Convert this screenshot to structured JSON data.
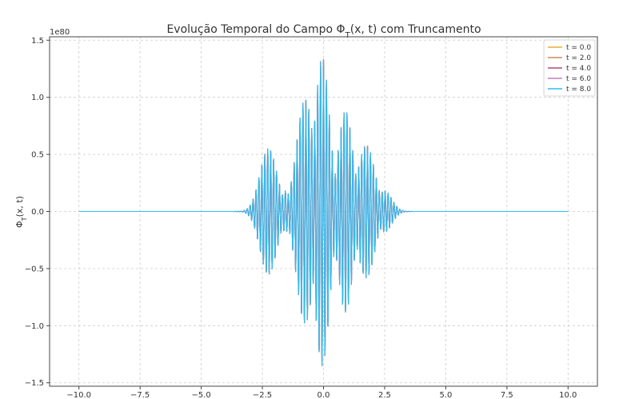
{
  "chart_data": {
    "type": "line",
    "title": "Evolução Temporal do Campo Φ_T(x, t) com Truncamento",
    "title_parts": {
      "prefix": "Evolução Temporal do Campo Φ",
      "sub": "T",
      "suffix": "(x, t) com Truncamento"
    },
    "ylabel": "Φ_T(x, t)",
    "ylabel_parts": {
      "prefix": "Φ",
      "sub": "T",
      "suffix": "(x, t)"
    },
    "xlabel": "",
    "y_offset_label": "1e80",
    "xlim": [
      -11.2,
      11.2
    ],
    "ylim": [
      -1.53,
      1.53
    ],
    "x_ticks": [
      -10.0,
      -7.5,
      -5.0,
      -2.5,
      0.0,
      2.5,
      5.0,
      7.5,
      10.0
    ],
    "x_tick_labels": [
      "−10.0",
      "−7.5",
      "−5.0",
      "−2.5",
      "0.0",
      "2.5",
      "5.0",
      "7.5",
      "10.0"
    ],
    "y_ticks": [
      -1.5,
      -1.0,
      -0.5,
      0.0,
      0.5,
      1.0,
      1.5
    ],
    "y_tick_labels": [
      "−1.5",
      "−1.0",
      "−0.5",
      "0.0",
      "0.5",
      "1.0",
      "1.5"
    ],
    "grid": true,
    "legend_position": "top-right",
    "x_range": [
      -10.0,
      10.0
    ],
    "envelope_bumps": [
      {
        "center": -2.25,
        "amplitude": 0.55,
        "width": 0.35
      },
      {
        "center": -1.55,
        "amplitude": 0.18,
        "width": 0.2
      },
      {
        "center": -0.75,
        "amplitude": 0.98,
        "width": 0.35
      },
      {
        "center": -0.05,
        "amplitude": 1.35,
        "width": 0.3
      },
      {
        "center": 0.9,
        "amplitude": 0.88,
        "width": 0.3
      },
      {
        "center": 1.75,
        "amplitude": 0.58,
        "width": 0.35
      },
      {
        "center": 2.5,
        "amplitude": 0.18,
        "width": 0.3
      }
    ],
    "oscillation_period": 0.12,
    "series": [
      {
        "name": "t = 0.0",
        "color": "#e5ae38"
      },
      {
        "name": "t = 2.0",
        "color": "#d0895a"
      },
      {
        "name": "t = 4.0",
        "color": "#b04b68"
      },
      {
        "name": "t = 6.0",
        "color": "#c77bc1"
      },
      {
        "name": "t = 8.0",
        "color": "#30bcf0"
      }
    ]
  }
}
